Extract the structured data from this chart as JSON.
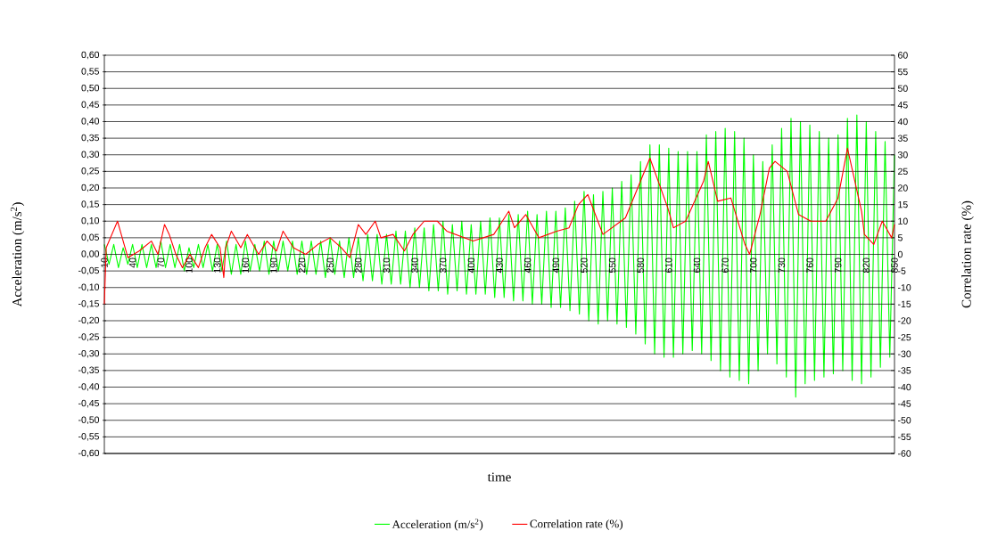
{
  "chart_data": {
    "type": "line",
    "xlabel": "time",
    "ylabel": "Acceleration (m/s$^{2}$)",
    "y2label": "Correlation rate (%)",
    "xlim": [
      10,
      850
    ],
    "xticks": [
      10,
      40,
      70,
      100,
      130,
      160,
      190,
      220,
      250,
      280,
      310,
      340,
      370,
      400,
      430,
      460,
      490,
      520,
      550,
      580,
      610,
      640,
      670,
      700,
      730,
      760,
      790,
      820,
      850
    ],
    "ylim": [
      -0.6,
      0.6
    ],
    "yticks": [
      {
        "value": 0.6,
        "label": "0,60"
      },
      {
        "value": 0.55,
        "label": "0,55"
      },
      {
        "value": 0.5,
        "label": "0,50"
      },
      {
        "value": 0.45,
        "label": "0,45"
      },
      {
        "value": 0.4,
        "label": "0,40"
      },
      {
        "value": 0.35,
        "label": "0,35"
      },
      {
        "value": 0.3,
        "label": "0,30"
      },
      {
        "value": 0.25,
        "label": "0,25"
      },
      {
        "value": 0.2,
        "label": "0,20"
      },
      {
        "value": 0.15,
        "label": "0,15"
      },
      {
        "value": 0.1,
        "label": "0,10"
      },
      {
        "value": 0.05,
        "label": "0,05"
      },
      {
        "value": 0,
        "label": "0,00"
      },
      {
        "value": -0.05,
        "label": "-0,05"
      },
      {
        "value": -0.1,
        "label": "-0,10"
      },
      {
        "value": -0.15,
        "label": "-0,15"
      },
      {
        "value": -0.2,
        "label": "-0,20"
      },
      {
        "value": -0.25,
        "label": "-0,25"
      },
      {
        "value": -0.3,
        "label": "-0,30"
      },
      {
        "value": -0.35,
        "label": "-0,35"
      },
      {
        "value": -0.4,
        "label": "-0,40"
      },
      {
        "value": -0.45,
        "label": "-0,45"
      },
      {
        "value": -0.5,
        "label": "-0,50"
      },
      {
        "value": -0.55,
        "label": "-0,55"
      },
      {
        "value": -0.6,
        "label": "-0,60"
      }
    ],
    "y2lim": [
      -60,
      60
    ],
    "y2ticks": [
      60,
      55,
      50,
      45,
      40,
      35,
      30,
      25,
      20,
      15,
      10,
      5,
      0,
      -5,
      -10,
      -15,
      -20,
      -25,
      -30,
      -35,
      -40,
      -45,
      -50,
      -55,
      -60
    ],
    "grid": "y",
    "legend": "bottom",
    "marker": "none",
    "series": [
      {
        "name": "Acceleration (m/s$^{2}$)",
        "color": "#00ff00",
        "x": [
          10,
          15,
          20,
          25,
          30,
          35,
          40,
          45,
          50,
          55,
          60,
          65,
          70,
          75,
          80,
          85,
          90,
          95,
          100,
          105,
          110,
          115,
          120,
          125,
          130,
          135,
          140,
          145,
          150,
          155,
          160,
          165,
          170,
          175,
          180,
          185,
          190,
          195,
          200,
          205,
          210,
          215,
          220,
          225,
          230,
          235,
          240,
          245,
          250,
          255,
          260,
          265,
          270,
          275,
          280,
          285,
          290,
          295,
          300,
          305,
          310,
          315,
          320,
          325,
          330,
          335,
          340,
          345,
          350,
          355,
          360,
          365,
          370,
          375,
          380,
          385,
          390,
          395,
          400,
          405,
          410,
          415,
          420,
          425,
          430,
          435,
          440,
          445,
          450,
          455,
          460,
          465,
          470,
          475,
          480,
          485,
          490,
          495,
          500,
          505,
          510,
          515,
          520,
          525,
          530,
          535,
          540,
          545,
          550,
          555,
          560,
          565,
          570,
          575,
          580,
          585,
          590,
          595,
          600,
          605,
          610,
          615,
          620,
          625,
          630,
          635,
          640,
          645,
          650,
          655,
          660,
          665,
          670,
          675,
          680,
          685,
          690,
          695,
          700,
          705,
          710,
          715,
          720,
          725,
          730,
          735,
          740,
          745,
          750,
          755,
          760,
          765,
          770,
          775,
          780,
          785,
          790,
          795,
          800,
          805,
          810,
          815,
          820,
          825,
          830,
          835,
          840,
          845,
          850
        ],
        "values": [
          0.03,
          -0.03,
          0.03,
          -0.04,
          0.02,
          -0.03,
          0.03,
          -0.04,
          0.03,
          -0.04,
          0.03,
          -0.04,
          0.04,
          -0.04,
          0.03,
          -0.04,
          0.03,
          -0.05,
          0.02,
          -0.04,
          0.03,
          -0.04,
          0.03,
          -0.05,
          0.03,
          -0.05,
          0.04,
          -0.06,
          0.03,
          -0.06,
          0.04,
          -0.05,
          0.03,
          -0.05,
          0.04,
          -0.06,
          0.04,
          -0.05,
          0.04,
          -0.05,
          0.04,
          -0.06,
          0.04,
          -0.06,
          0.04,
          -0.06,
          0.04,
          -0.07,
          0.05,
          -0.06,
          0.04,
          -0.07,
          0.05,
          -0.07,
          0.05,
          -0.08,
          0.06,
          -0.08,
          0.06,
          -0.09,
          0.06,
          -0.09,
          0.07,
          -0.09,
          0.07,
          -0.1,
          0.08,
          -0.1,
          0.08,
          -0.11,
          0.09,
          -0.11,
          0.1,
          -0.12,
          0.09,
          -0.11,
          0.1,
          -0.12,
          0.09,
          -0.12,
          0.1,
          -0.12,
          0.11,
          -0.13,
          0.11,
          -0.13,
          0.12,
          -0.14,
          0.12,
          -0.14,
          0.13,
          -0.15,
          0.12,
          -0.15,
          0.13,
          -0.16,
          0.13,
          -0.16,
          0.14,
          -0.17,
          0.16,
          -0.18,
          0.19,
          -0.2,
          0.18,
          -0.21,
          0.19,
          -0.2,
          0.2,
          -0.21,
          0.22,
          -0.22,
          0.24,
          -0.24,
          0.28,
          -0.27,
          0.33,
          -0.3,
          0.33,
          -0.31,
          0.32,
          -0.31,
          0.31,
          -0.3,
          0.31,
          -0.29,
          0.31,
          -0.3,
          0.36,
          -0.32,
          0.37,
          -0.35,
          0.38,
          -0.37,
          0.37,
          -0.38,
          0.35,
          -0.39,
          0.3,
          -0.35,
          0.28,
          -0.3,
          0.33,
          -0.33,
          0.38,
          -0.37,
          0.41,
          -0.43,
          0.4,
          -0.39,
          0.39,
          -0.38,
          0.37,
          -0.37,
          0.35,
          -0.36,
          0.36,
          -0.35,
          0.41,
          -0.38,
          0.42,
          -0.39,
          0.4,
          -0.37,
          0.37,
          -0.34,
          0.34,
          -0.31,
          0.3
        ]
      },
      {
        "name": "Correlation rate (%)",
        "color": "#ff0000",
        "axis": "y2",
        "x": [
          10,
          12,
          24,
          29,
          35,
          47,
          60,
          67,
          74,
          79,
          86,
          93,
          101,
          110,
          117,
          124,
          133,
          137,
          139,
          145,
          155,
          162,
          174,
          183,
          193,
          200,
          211,
          224,
          237,
          250,
          262,
          271,
          280,
          288,
          298,
          304,
          317,
          329,
          338,
          350,
          364,
          374,
          402,
          424,
          440,
          446,
          458,
          472,
          491,
          504,
          514,
          524,
          540,
          564,
          577,
          590,
          609,
          615,
          628,
          647,
          652,
          662,
          676,
          691,
          696,
          707,
          717,
          723,
          736,
          748,
          761,
          777,
          790,
          800,
          815,
          818,
          828,
          837,
          847,
          850
        ],
        "values": [
          -15,
          2,
          10,
          5,
          -1,
          1,
          4,
          0,
          9,
          6,
          0,
          -4,
          0,
          -4,
          2,
          6,
          2,
          -7,
          2,
          7,
          2,
          6,
          0,
          4,
          1,
          7,
          2,
          0,
          3,
          5,
          2,
          -1,
          9,
          6,
          10,
          5,
          6,
          1,
          6,
          10,
          10,
          7,
          4,
          6,
          13,
          8,
          12,
          5,
          7,
          8,
          15,
          18,
          6,
          11,
          20,
          29,
          14,
          8,
          10,
          22,
          28,
          16,
          17,
          3,
          0,
          12,
          26,
          28,
          25,
          12,
          10,
          10,
          17,
          32,
          13,
          6,
          3,
          10,
          5,
          9
        ]
      }
    ]
  }
}
